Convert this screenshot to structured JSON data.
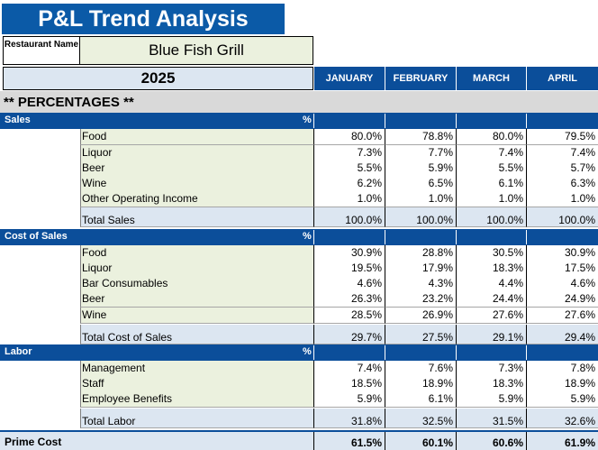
{
  "title": "P&L Trend Analysis",
  "restaurant": {
    "label": "Restaurant Name",
    "name": "Blue Fish Grill"
  },
  "year": "2025",
  "months": [
    "JANUARY",
    "FEBRUARY",
    "MARCH",
    "APRIL"
  ],
  "percentages_title": "** PERCENTAGES **",
  "sections": {
    "sales": {
      "name": "Sales",
      "pct": "%",
      "rows": [
        {
          "label": "Food",
          "values": [
            "80.0%",
            "78.8%",
            "80.0%",
            "79.5%"
          ]
        },
        {
          "label": "Liquor",
          "values": [
            "7.3%",
            "7.7%",
            "7.4%",
            "7.4%"
          ]
        },
        {
          "label": "Beer",
          "values": [
            "5.5%",
            "5.9%",
            "5.5%",
            "5.7%"
          ]
        },
        {
          "label": "Wine",
          "values": [
            "6.2%",
            "6.5%",
            "6.1%",
            "6.3%"
          ]
        },
        {
          "label": "Other Operating Income",
          "values": [
            "1.0%",
            "1.0%",
            "1.0%",
            "1.0%"
          ]
        }
      ],
      "total": {
        "label": "Total Sales",
        "values": [
          "100.0%",
          "100.0%",
          "100.0%",
          "100.0%"
        ]
      }
    },
    "cost": {
      "name": "Cost of Sales",
      "pct": "%",
      "rows": [
        {
          "label": "Food",
          "values": [
            "30.9%",
            "28.8%",
            "30.5%",
            "30.9%"
          ]
        },
        {
          "label": "Liquor",
          "values": [
            "19.5%",
            "17.9%",
            "18.3%",
            "17.5%"
          ]
        },
        {
          "label": "Bar Consumables",
          "values": [
            "4.6%",
            "4.3%",
            "4.4%",
            "4.6%"
          ]
        },
        {
          "label": "Beer",
          "values": [
            "26.3%",
            "23.2%",
            "24.4%",
            "24.9%"
          ]
        },
        {
          "label": "Wine",
          "values": [
            "28.5%",
            "26.9%",
            "27.6%",
            "27.6%"
          ]
        }
      ],
      "total": {
        "label": "Total Cost of Sales",
        "values": [
          "29.7%",
          "27.5%",
          "29.1%",
          "29.4%"
        ]
      }
    },
    "labor": {
      "name": "Labor",
      "pct": "%",
      "rows": [
        {
          "label": "Management",
          "values": [
            "7.4%",
            "7.6%",
            "7.3%",
            "7.8%"
          ]
        },
        {
          "label": "Staff",
          "values": [
            "18.5%",
            "18.9%",
            "18.3%",
            "18.9%"
          ]
        },
        {
          "label": "Employee Benefits",
          "values": [
            "5.9%",
            "6.1%",
            "5.9%",
            "5.9%"
          ]
        }
      ],
      "total": {
        "label": "Total Labor",
        "values": [
          "31.8%",
          "32.5%",
          "31.5%",
          "32.6%"
        ]
      }
    }
  },
  "prime_cost": {
    "label": "Prime Cost",
    "values": [
      "61.5%",
      "60.1%",
      "60.6%",
      "61.9%"
    ]
  },
  "colors": {
    "header_blue": "#0b4e9a",
    "title_blue": "#0b5aa7",
    "label_green": "#ebf1de",
    "total_blue": "#dce6f1"
  }
}
